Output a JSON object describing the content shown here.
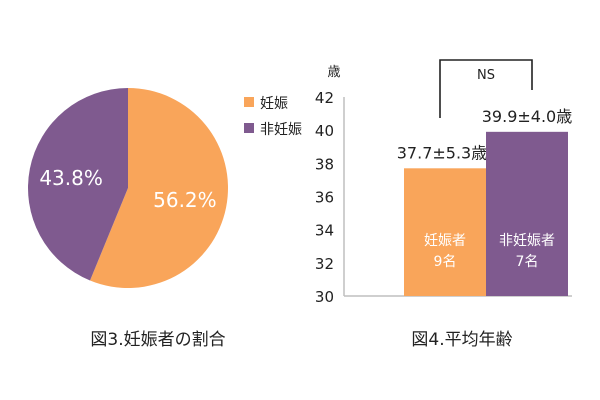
{
  "colors": {
    "pregnant": "#F9A55A",
    "non_pregnant": "#7F5A8F",
    "axis": "#bfbfbf",
    "text": "#222222",
    "label_on_bar": "#ffffff"
  },
  "chart_data": [
    {
      "type": "pie",
      "caption": "図3.妊娠者の割合",
      "legend_position": "right",
      "slices": [
        {
          "name": "妊娠",
          "value": 56.2,
          "label": "56.2%",
          "color": "#F9A55A"
        },
        {
          "name": "非妊娠",
          "value": 43.8,
          "label": "43.8%",
          "color": "#7F5A8F"
        }
      ]
    },
    {
      "type": "bar",
      "caption": "図4.平均年齢",
      "ylabel": "歳",
      "ylim": [
        30,
        42
      ],
      "yticks": [
        30,
        32,
        34,
        36,
        38,
        40,
        42
      ],
      "grid": false,
      "bars": [
        {
          "name": "妊娠者",
          "count": "9名",
          "value": 37.7,
          "sd": 5.3,
          "value_label": "37.7±5.3歳",
          "color": "#F9A55A"
        },
        {
          "name": "非妊娠者",
          "count": "7名",
          "value": 39.9,
          "sd": 4.0,
          "value_label": "39.9±4.0歳",
          "color": "#7F5A8F"
        }
      ],
      "significance": "NS"
    }
  ]
}
